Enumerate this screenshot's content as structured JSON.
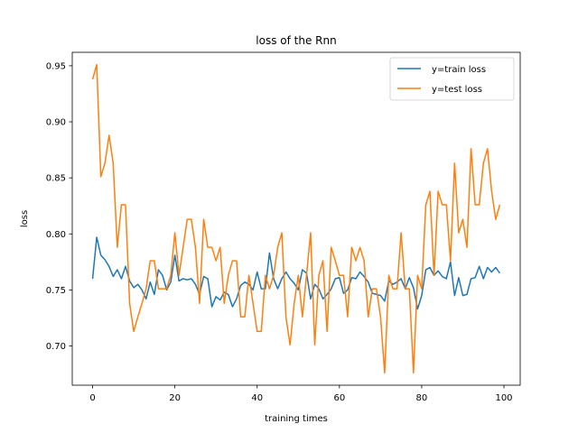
{
  "chart_data": {
    "type": "line",
    "title": "loss of the Rnn",
    "xlabel": "training times",
    "ylabel": "loss",
    "xlim": [
      -4.95,
      103.95
    ],
    "ylim": [
      0.665,
      0.962
    ],
    "xticks": [
      0,
      20,
      40,
      60,
      80,
      100
    ],
    "yticks": [
      0.7,
      0.75,
      0.8,
      0.85,
      0.9,
      0.95
    ],
    "xtick_labels": [
      "0",
      "20",
      "40",
      "60",
      "80",
      "100"
    ],
    "ytick_labels": [
      "0.70",
      "0.75",
      "0.80",
      "0.85",
      "0.90",
      "0.95"
    ],
    "grid": false,
    "legend_position": "top-right",
    "series": [
      {
        "name": "y=train loss",
        "color": "#1f77b4",
        "x": [
          0,
          1,
          2,
          3,
          4,
          5,
          6,
          7,
          8,
          9,
          10,
          11,
          12,
          13,
          14,
          15,
          16,
          17,
          18,
          19,
          20,
          21,
          22,
          23,
          24,
          25,
          26,
          27,
          28,
          29,
          30,
          31,
          32,
          33,
          34,
          35,
          36,
          37,
          38,
          39,
          40,
          41,
          42,
          43,
          44,
          45,
          46,
          47,
          48,
          49,
          50,
          51,
          52,
          53,
          54,
          55,
          56,
          57,
          58,
          59,
          60,
          61,
          62,
          63,
          64,
          65,
          66,
          67,
          68,
          69,
          70,
          71,
          72,
          73,
          74,
          75,
          76,
          77,
          78,
          79,
          80,
          81,
          82,
          83,
          84,
          85,
          86,
          87,
          88,
          89,
          90,
          91,
          92,
          93,
          94,
          95,
          96,
          97,
          98,
          99
        ],
        "values": [
          0.76,
          0.797,
          0.781,
          0.777,
          0.771,
          0.762,
          0.768,
          0.76,
          0.771,
          0.758,
          0.752,
          0.755,
          0.75,
          0.742,
          0.757,
          0.746,
          0.768,
          0.763,
          0.75,
          0.757,
          0.781,
          0.758,
          0.76,
          0.759,
          0.76,
          0.755,
          0.746,
          0.762,
          0.76,
          0.735,
          0.744,
          0.741,
          0.748,
          0.746,
          0.735,
          0.742,
          0.754,
          0.757,
          0.755,
          0.75,
          0.766,
          0.751,
          0.751,
          0.783,
          0.76,
          0.751,
          0.76,
          0.766,
          0.76,
          0.756,
          0.75,
          0.768,
          0.765,
          0.742,
          0.755,
          0.751,
          0.742,
          0.746,
          0.751,
          0.76,
          0.761,
          0.747,
          0.75,
          0.761,
          0.76,
          0.766,
          0.762,
          0.757,
          0.747,
          0.746,
          0.745,
          0.74,
          0.758,
          0.755,
          0.757,
          0.76,
          0.751,
          0.761,
          0.752,
          0.733,
          0.745,
          0.768,
          0.77,
          0.763,
          0.767,
          0.762,
          0.76,
          0.775,
          0.745,
          0.761,
          0.745,
          0.746,
          0.76,
          0.761,
          0.771,
          0.76,
          0.77,
          0.766,
          0.77,
          0.765
        ]
      },
      {
        "name": "y=test loss",
        "color": "#ff7f0e",
        "x": [
          0,
          1,
          2,
          3,
          4,
          5,
          6,
          7,
          8,
          9,
          10,
          11,
          12,
          13,
          14,
          15,
          16,
          17,
          18,
          19,
          20,
          21,
          22,
          23,
          24,
          25,
          26,
          27,
          28,
          29,
          30,
          31,
          32,
          33,
          34,
          35,
          36,
          37,
          38,
          39,
          40,
          41,
          42,
          43,
          44,
          45,
          46,
          47,
          48,
          49,
          50,
          51,
          52,
          53,
          54,
          55,
          56,
          57,
          58,
          59,
          60,
          61,
          62,
          63,
          64,
          65,
          66,
          67,
          68,
          69,
          70,
          71,
          72,
          73,
          74,
          75,
          76,
          77,
          78,
          79,
          80,
          81,
          82,
          83,
          84,
          85,
          86,
          87,
          88,
          89,
          90,
          91,
          92,
          93,
          94,
          95,
          96,
          97,
          98,
          99
        ],
        "values": [
          0.938,
          0.951,
          0.851,
          0.863,
          0.888,
          0.863,
          0.788,
          0.826,
          0.826,
          0.738,
          0.713,
          0.726,
          0.738,
          0.751,
          0.776,
          0.776,
          0.751,
          0.751,
          0.751,
          0.763,
          0.801,
          0.763,
          0.788,
          0.813,
          0.813,
          0.788,
          0.738,
          0.813,
          0.788,
          0.788,
          0.776,
          0.788,
          0.738,
          0.763,
          0.776,
          0.776,
          0.726,
          0.726,
          0.763,
          0.738,
          0.713,
          0.713,
          0.763,
          0.751,
          0.763,
          0.788,
          0.801,
          0.726,
          0.701,
          0.738,
          0.763,
          0.726,
          0.763,
          0.801,
          0.701,
          0.763,
          0.776,
          0.713,
          0.788,
          0.776,
          0.763,
          0.763,
          0.726,
          0.788,
          0.776,
          0.788,
          0.776,
          0.726,
          0.751,
          0.751,
          0.726,
          0.676,
          0.763,
          0.751,
          0.751,
          0.801,
          0.751,
          0.751,
          0.676,
          0.763,
          0.751,
          0.826,
          0.838,
          0.763,
          0.838,
          0.826,
          0.826,
          0.776,
          0.863,
          0.801,
          0.813,
          0.788,
          0.876,
          0.826,
          0.826,
          0.863,
          0.876,
          0.838,
          0.813,
          0.826
        ]
      }
    ]
  }
}
